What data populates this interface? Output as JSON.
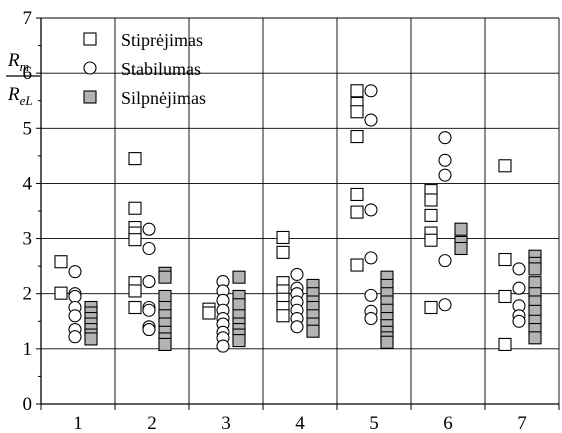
{
  "chart_data": {
    "type": "scatter",
    "title": "",
    "xlabel": "",
    "ylabel_num": {
      "main": "R",
      "sub": "m"
    },
    "ylabel_den": {
      "main": "R",
      "sub": "eL"
    },
    "ylim": [
      0,
      7
    ],
    "yticks": [
      "0",
      "1",
      "2",
      "3",
      "4",
      "5",
      "6",
      "7"
    ],
    "categories": [
      "1",
      "2",
      "3",
      "4",
      "5",
      "6",
      "7"
    ],
    "grid": true,
    "legend_position": "top-left",
    "series": [
      {
        "name": "Stiprėjimas",
        "marker": "square-open",
        "color": "#000000",
        "points": [
          [
            1,
            2.58
          ],
          [
            1,
            2.01
          ],
          [
            2,
            4.45
          ],
          [
            2,
            3.55
          ],
          [
            2,
            3.2
          ],
          [
            2,
            3.1
          ],
          [
            2,
            2.98
          ],
          [
            2,
            2.2
          ],
          [
            2,
            2.05
          ],
          [
            2,
            1.75
          ],
          [
            3,
            1.72
          ],
          [
            3,
            1.65
          ],
          [
            4,
            3.02
          ],
          [
            4,
            2.75
          ],
          [
            4,
            2.2
          ],
          [
            4,
            2.05
          ],
          [
            4,
            1.9
          ],
          [
            4,
            1.75
          ],
          [
            4,
            1.6
          ],
          [
            5,
            5.68
          ],
          [
            5,
            5.45
          ],
          [
            5,
            5.3
          ],
          [
            5,
            4.85
          ],
          [
            5,
            3.8
          ],
          [
            5,
            3.48
          ],
          [
            5,
            2.52
          ],
          [
            6,
            3.87
          ],
          [
            6,
            3.7
          ],
          [
            6,
            3.42
          ],
          [
            6,
            3.1
          ],
          [
            6,
            2.97
          ],
          [
            6,
            1.75
          ],
          [
            7,
            4.32
          ],
          [
            7,
            2.62
          ],
          [
            7,
            1.95
          ],
          [
            7,
            1.08
          ]
        ]
      },
      {
        "name": "Stabilumas",
        "marker": "circle-open",
        "color": "#000000",
        "points": [
          [
            1,
            2.4
          ],
          [
            1,
            2.0
          ],
          [
            1,
            1.95
          ],
          [
            1,
            1.75
          ],
          [
            1,
            1.6
          ],
          [
            1,
            1.35
          ],
          [
            1,
            1.22
          ],
          [
            2,
            3.17
          ],
          [
            2,
            2.82
          ],
          [
            2,
            2.22
          ],
          [
            2,
            1.75
          ],
          [
            2,
            1.7
          ],
          [
            2,
            1.4
          ],
          [
            2,
            1.35
          ],
          [
            3,
            2.22
          ],
          [
            3,
            2.05
          ],
          [
            3,
            1.88
          ],
          [
            3,
            1.7
          ],
          [
            3,
            1.55
          ],
          [
            3,
            1.45
          ],
          [
            3,
            1.3
          ],
          [
            3,
            1.2
          ],
          [
            3,
            1.05
          ],
          [
            4,
            2.35
          ],
          [
            4,
            2.1
          ],
          [
            4,
            2.0
          ],
          [
            4,
            1.85
          ],
          [
            4,
            1.7
          ],
          [
            4,
            1.55
          ],
          [
            4,
            1.4
          ],
          [
            5,
            5.68
          ],
          [
            5,
            5.15
          ],
          [
            5,
            3.52
          ],
          [
            5,
            2.65
          ],
          [
            5,
            1.97
          ],
          [
            5,
            1.68
          ],
          [
            5,
            1.55
          ],
          [
            6,
            4.83
          ],
          [
            6,
            4.42
          ],
          [
            6,
            4.15
          ],
          [
            6,
            2.6
          ],
          [
            6,
            1.8
          ],
          [
            7,
            2.45
          ],
          [
            7,
            2.1
          ],
          [
            7,
            1.78
          ],
          [
            7,
            1.6
          ],
          [
            7,
            1.5
          ]
        ]
      },
      {
        "name": "Silpnėjimas",
        "marker": "square-filled",
        "color": "#b3b3b3",
        "points": [
          [
            1,
            1.75
          ],
          [
            1,
            1.65
          ],
          [
            1,
            1.55
          ],
          [
            1,
            1.45
          ],
          [
            1,
            1.35
          ],
          [
            1,
            1.25
          ],
          [
            1,
            1.18
          ],
          [
            2,
            2.37
          ],
          [
            2,
            2.3
          ],
          [
            2,
            1.95
          ],
          [
            2,
            1.75
          ],
          [
            2,
            1.6
          ],
          [
            2,
            1.45
          ],
          [
            2,
            1.3
          ],
          [
            2,
            1.18
          ],
          [
            2,
            1.08
          ],
          [
            3,
            2.3
          ],
          [
            3,
            1.95
          ],
          [
            3,
            1.8
          ],
          [
            3,
            1.6
          ],
          [
            3,
            1.45
          ],
          [
            3,
            1.35
          ],
          [
            3,
            1.25
          ],
          [
            3,
            1.15
          ],
          [
            4,
            2.15
          ],
          [
            4,
            2.0
          ],
          [
            4,
            1.85
          ],
          [
            4,
            1.75
          ],
          [
            4,
            1.6
          ],
          [
            4,
            1.45
          ],
          [
            4,
            1.32
          ],
          [
            5,
            2.3
          ],
          [
            5,
            2.15
          ],
          [
            5,
            2.0
          ],
          [
            5,
            1.85
          ],
          [
            5,
            1.7
          ],
          [
            5,
            1.55
          ],
          [
            5,
            1.42
          ],
          [
            5,
            1.3
          ],
          [
            5,
            1.2
          ],
          [
            5,
            1.12
          ],
          [
            6,
            3.17
          ],
          [
            6,
            2.93
          ],
          [
            6,
            2.82
          ],
          [
            7,
            2.68
          ],
          [
            7,
            2.55
          ],
          [
            7,
            2.45
          ],
          [
            7,
            2.2
          ],
          [
            7,
            2.0
          ],
          [
            7,
            1.85
          ],
          [
            7,
            1.68
          ],
          [
            7,
            1.5
          ],
          [
            7,
            1.35
          ],
          [
            7,
            1.2
          ]
        ]
      }
    ]
  }
}
